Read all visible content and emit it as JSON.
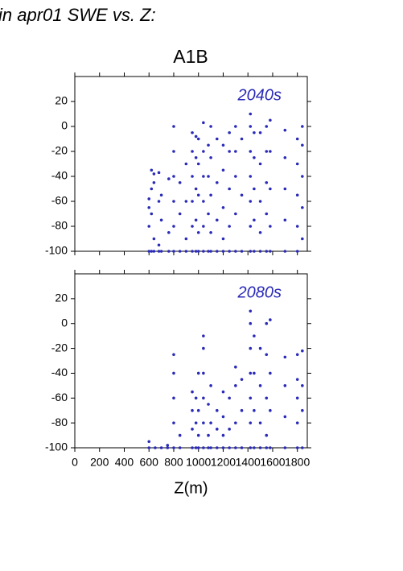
{
  "heading": "in apr01 SWE vs. Z:",
  "chart_data": [
    {
      "type": "scatter",
      "title": "A1B",
      "label": "2040s",
      "color": "#2a2ab8",
      "xlim": [
        0,
        1880
      ],
      "ylim": [
        -100,
        40
      ],
      "yticks": [
        -100,
        -80,
        -60,
        -40,
        -20,
        0,
        20
      ],
      "x": [
        600,
        600,
        600,
        600,
        620,
        620,
        620,
        620,
        640,
        640,
        640,
        640,
        680,
        680,
        680,
        680,
        700,
        700,
        700,
        760,
        760,
        760,
        800,
        800,
        800,
        800,
        800,
        800,
        850,
        850,
        850,
        900,
        900,
        900,
        900,
        950,
        950,
        950,
        950,
        950,
        950,
        980,
        980,
        980,
        980,
        980,
        1000,
        1000,
        1000,
        1000,
        1000,
        1040,
        1040,
        1040,
        1040,
        1040,
        1040,
        1080,
        1080,
        1080,
        1080,
        1100,
        1100,
        1100,
        1100,
        1100,
        1150,
        1150,
        1150,
        1150,
        1200,
        1200,
        1200,
        1200,
        1200,
        1250,
        1250,
        1250,
        1250,
        1250,
        1300,
        1300,
        1300,
        1300,
        1300,
        1350,
        1350,
        1350,
        1420,
        1420,
        1420,
        1420,
        1420,
        1420,
        1420,
        1450,
        1450,
        1450,
        1450,
        1450,
        1500,
        1500,
        1500,
        1500,
        1500,
        1550,
        1550,
        1550,
        1550,
        1550,
        1580,
        1580,
        1580,
        1580,
        1580,
        1700,
        1700,
        1700,
        1700,
        1700,
        1800,
        1800,
        1800,
        1800,
        1800,
        1840,
        1840,
        1840,
        1840,
        1840
      ],
      "y": [
        -100,
        -80,
        -65,
        -58,
        -100,
        -70,
        -50,
        -35,
        -100,
        -90,
        -45,
        -38,
        -100,
        -95,
        -60,
        -37,
        -100,
        -75,
        -55,
        -100,
        -85,
        -42,
        -100,
        -80,
        -60,
        -40,
        -20,
        0,
        -100,
        -70,
        -45,
        -100,
        -90,
        -60,
        -30,
        -100,
        -80,
        -60,
        -40,
        -20,
        -5,
        -100,
        -75,
        -50,
        -25,
        -8,
        -100,
        -85,
        -55,
        -30,
        -10,
        -100,
        -80,
        -60,
        -40,
        -20,
        3,
        -100,
        -70,
        -40,
        -15,
        -100,
        -85,
        -55,
        -25,
        0,
        -100,
        -75,
        -45,
        -10,
        -100,
        -90,
        -65,
        -35,
        -15,
        -100,
        -80,
        -50,
        -20,
        -5,
        -100,
        -70,
        -40,
        -20,
        0,
        -100,
        -55,
        -10,
        -100,
        -80,
        -60,
        -40,
        -20,
        0,
        10,
        -100,
        -75,
        -50,
        -25,
        -5,
        -100,
        -85,
        -60,
        -30,
        -5,
        -100,
        -70,
        -45,
        -20,
        0,
        -100,
        -80,
        -50,
        -20,
        5,
        -100,
        -75,
        -50,
        -25,
        -3,
        -100,
        -80,
        -55,
        -30,
        -10,
        -90,
        -65,
        -40,
        -15,
        0
      ]
    },
    {
      "type": "scatter",
      "label": "2080s",
      "xlabel": "Z(m)",
      "color": "#2a2ab8",
      "xlim": [
        0,
        1880
      ],
      "ylim": [
        -100,
        40
      ],
      "yticks": [
        -100,
        -80,
        -60,
        -40,
        -20,
        0,
        20
      ],
      "xticks": [
        0,
        200,
        400,
        600,
        800,
        1000,
        1200,
        1400,
        1600,
        1800
      ],
      "x": [
        600,
        600,
        650,
        700,
        750,
        750,
        800,
        800,
        800,
        800,
        800,
        850,
        850,
        950,
        950,
        950,
        950,
        980,
        980,
        980,
        1000,
        1000,
        1000,
        1000,
        1040,
        1040,
        1040,
        1040,
        1040,
        1040,
        1080,
        1080,
        1080,
        1100,
        1100,
        1100,
        1150,
        1150,
        1150,
        1200,
        1200,
        1200,
        1200,
        1250,
        1250,
        1250,
        1300,
        1300,
        1300,
        1300,
        1350,
        1350,
        1350,
        1420,
        1420,
        1420,
        1420,
        1420,
        1420,
        1420,
        1450,
        1450,
        1450,
        1450,
        1500,
        1500,
        1500,
        1500,
        1550,
        1550,
        1550,
        1550,
        1550,
        1580,
        1580,
        1580,
        1580,
        1700,
        1700,
        1700,
        1700,
        1800,
        1800,
        1800,
        1800,
        1800,
        1840,
        1840,
        1840,
        1840
      ],
      "y": [
        -100,
        -95,
        -100,
        -100,
        -100,
        -98,
        -100,
        -80,
        -60,
        -40,
        -25,
        -100,
        -90,
        -100,
        -85,
        -70,
        -55,
        -100,
        -80,
        -60,
        -100,
        -90,
        -70,
        -40,
        -100,
        -80,
        -60,
        -40,
        -20,
        -10,
        -100,
        -90,
        -65,
        -100,
        -80,
        -50,
        -100,
        -85,
        -70,
        -100,
        -90,
        -75,
        -55,
        -100,
        -85,
        -60,
        -100,
        -80,
        -50,
        -35,
        -100,
        -70,
        -45,
        -100,
        -80,
        -60,
        -40,
        -20,
        0,
        10,
        -100,
        -70,
        -40,
        -10,
        -100,
        -80,
        -50,
        -20,
        -100,
        -90,
        -60,
        -25,
        0,
        -100,
        -70,
        -40,
        3,
        -100,
        -75,
        -50,
        -27,
        -100,
        -80,
        -60,
        -45,
        -25,
        -100,
        -70,
        -50,
        -22
      ]
    }
  ]
}
